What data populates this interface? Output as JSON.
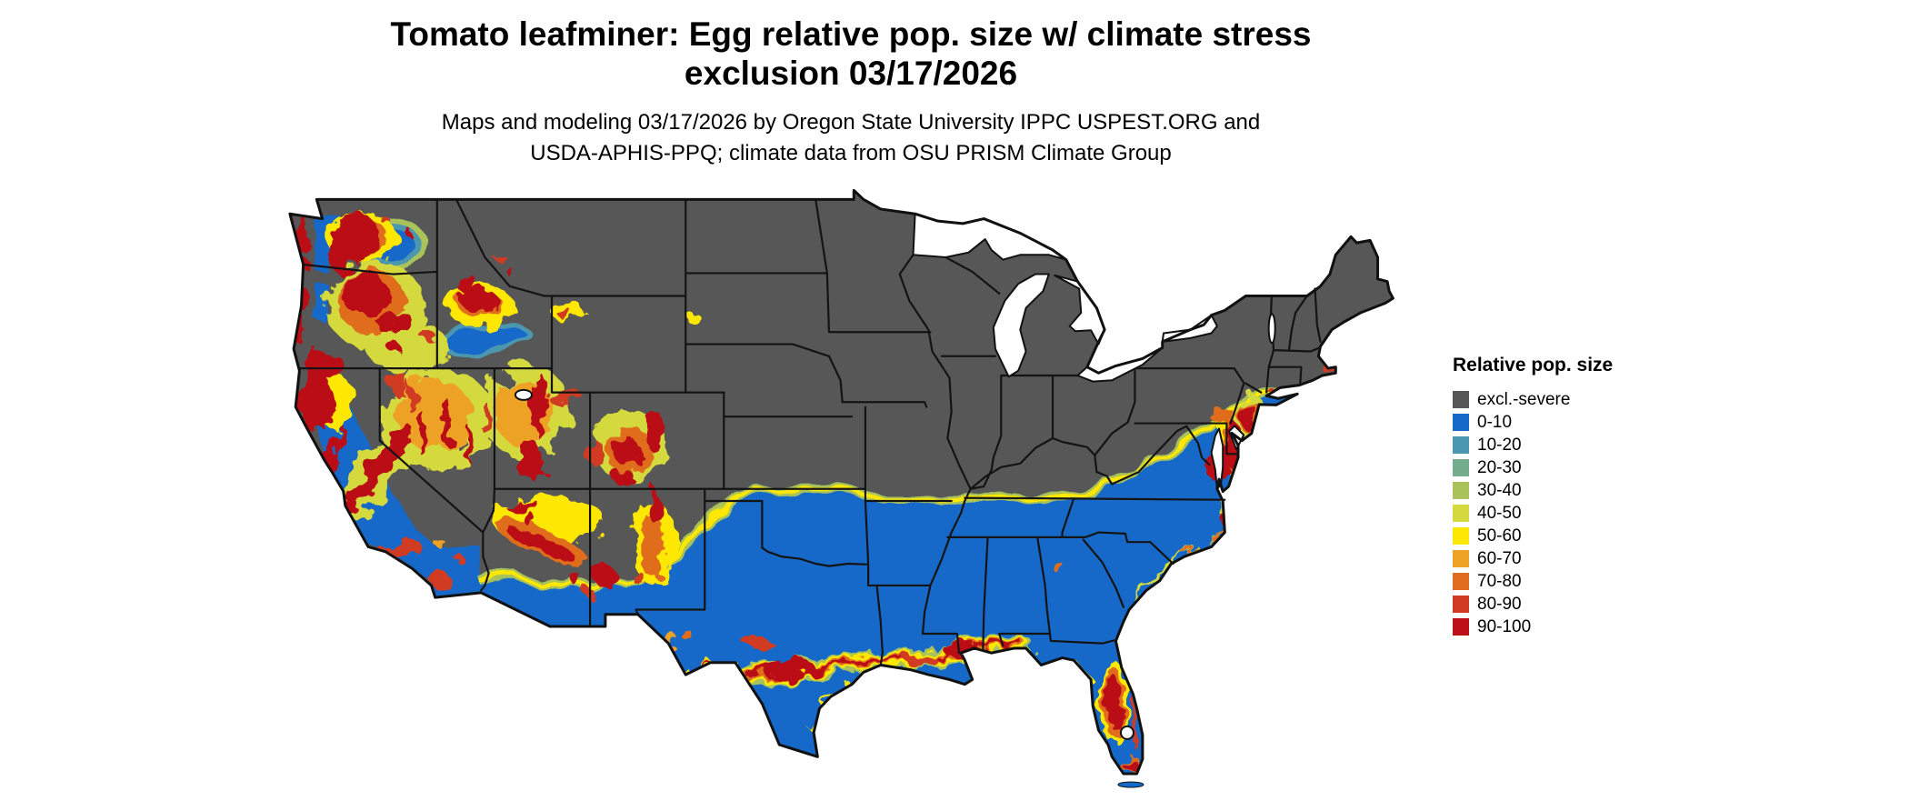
{
  "title": {
    "line1": "Tomato leafminer: Egg relative pop. size w/ climate stress",
    "line2": "exclusion 03/17/2026"
  },
  "subtitle": {
    "line1": "Maps and modeling 03/17/2026 by Oregon State University IPPC USPEST.ORG and",
    "line2": "USDA-APHIS-PPQ; climate data from OSU PRISM Climate Group"
  },
  "legend": {
    "title": "Relative pop. size",
    "items": [
      {
        "label": "excl.-severe",
        "color": "#575757"
      },
      {
        "label": "0-10",
        "color": "#1569c9"
      },
      {
        "label": "10-20",
        "color": "#4c97b0"
      },
      {
        "label": "20-30",
        "color": "#73ad8d"
      },
      {
        "label": "30-40",
        "color": "#a9c35a"
      },
      {
        "label": "40-50",
        "color": "#d4d93e"
      },
      {
        "label": "50-60",
        "color": "#fee705"
      },
      {
        "label": "60-70",
        "color": "#eda226"
      },
      {
        "label": "70-80",
        "color": "#e06d1f"
      },
      {
        "label": "80-90",
        "color": "#d03a22"
      },
      {
        "label": "90-100",
        "color": "#bb1015"
      }
    ]
  },
  "map": {
    "region": "Continental United States",
    "type": "raster choropleth",
    "observations": [
      {
        "area": "Northern tier, Midwest, Great Lakes, New England, Appalachians",
        "dominant_class": "excl.-severe"
      },
      {
        "area": "South, Southeast, Texas, southern plains, California Central Valley, Pacific Northwest lowlands",
        "dominant_class": "0-10"
      },
      {
        "area": "Interior West: Cascades, Sierra Nevada, Great Basin, Colorado Plateau, Rockies",
        "dominant_class": "mixed 30-100 mosaic"
      },
      {
        "area": "Texas-Louisiana Gulf Coast band",
        "dominant_class": "60-100"
      },
      {
        "area": "Central and south Florida ridge",
        "dominant_class": "60-100"
      },
      {
        "area": "Mid-Atlantic coast: Chesapeake, Delmarva, New Jersey",
        "dominant_class": "70-100"
      }
    ]
  }
}
